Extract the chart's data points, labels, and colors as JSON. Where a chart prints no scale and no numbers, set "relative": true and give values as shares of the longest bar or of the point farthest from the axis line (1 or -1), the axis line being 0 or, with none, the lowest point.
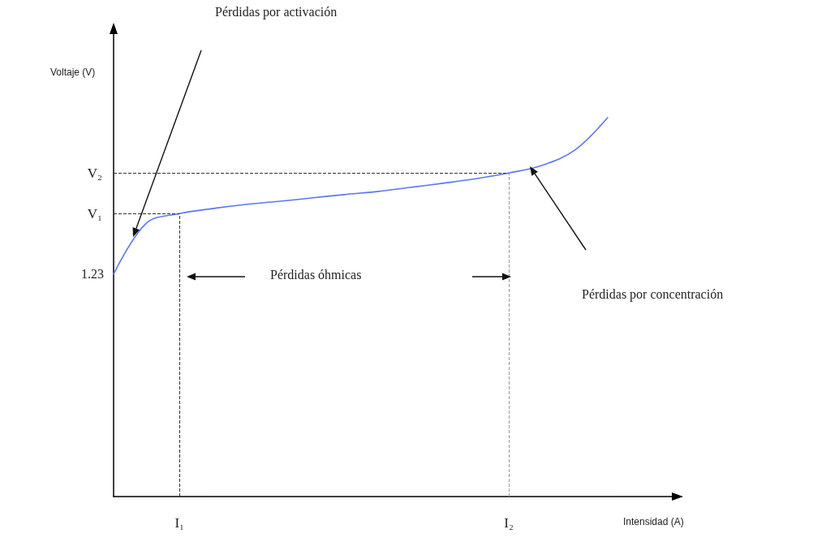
{
  "chart_data": {
    "type": "line",
    "relative": true,
    "xlabel": "Intensidad (A)",
    "ylabel": "Voltaje (V)",
    "categories": [
      null,
      null,
      "I₁",
      null,
      null,
      null,
      null,
      null,
      null,
      null,
      null,
      null,
      "I₂",
      null,
      null,
      null,
      null,
      null
    ],
    "series": [
      {
        "color": "#5a78f0",
        "values": [
          0.587,
          0.722,
          0.747,
          0.76,
          0.771,
          0.779,
          0.788,
          0.797,
          0.805,
          0.816,
          0.827,
          0.839,
          0.854,
          0.874,
          0.914,
          1.0,
          null,
          null
        ]
      }
    ],
    "ref_lines": [
      {
        "axis": "y",
        "value": 0.747,
        "label": "V₁",
        "line_style": "dashed",
        "color": "#333333"
      },
      {
        "axis": "y",
        "value": 0.854,
        "label": "V₂",
        "line_style": "dashed",
        "color": "#333333"
      },
      {
        "axis": "x",
        "value": "I₁",
        "line_style": "dashed",
        "color": "#333333"
      },
      {
        "axis": "x",
        "value": "I₂",
        "line_style": "dashed",
        "color": "#999999"
      }
    ],
    "annotations": [
      "1.23",
      "Pérdidas por activación",
      "Pérdidas óhmicas",
      "Pérdidas por concentración"
    ],
    "line_style": "solid",
    "marker": "none"
  }
}
